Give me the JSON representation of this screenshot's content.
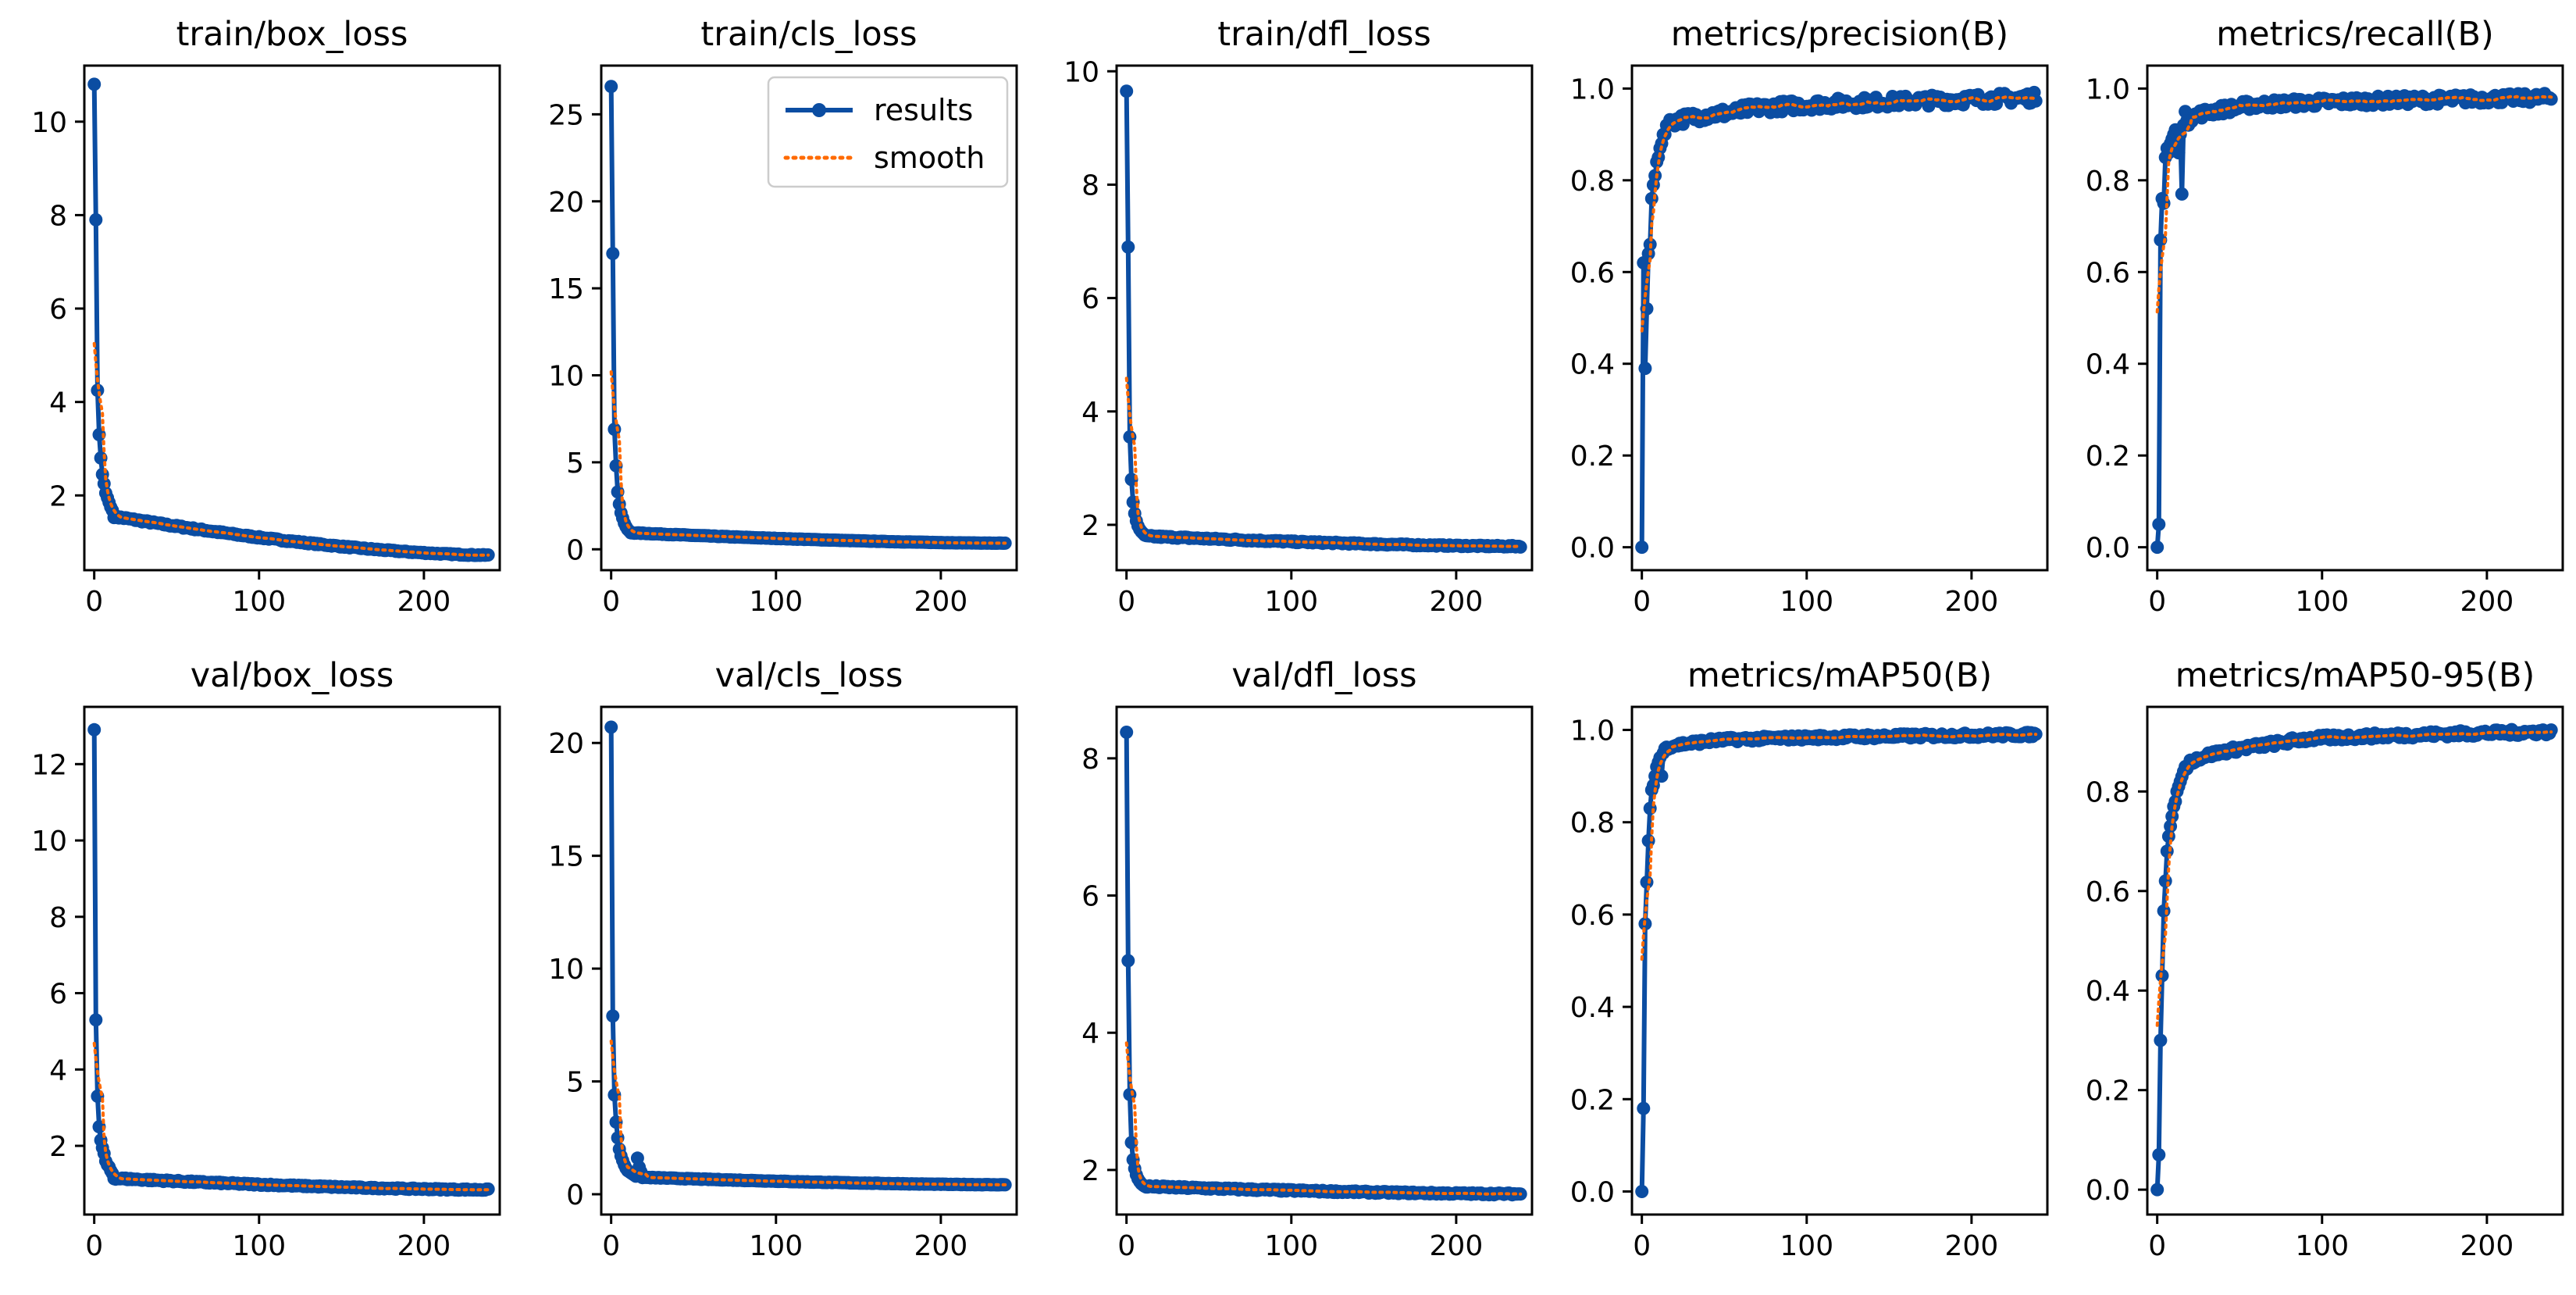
{
  "colors": {
    "results": "#0b4da2",
    "smooth": "#ff6a00",
    "axis": "#000000",
    "background": "#ffffff"
  },
  "legend": {
    "results_label": "results",
    "smooth_label": "smooth",
    "placement": "top-right of train/cls_loss"
  },
  "chart_data": [
    {
      "type": "line",
      "title": "train/box_loss",
      "xlim": [
        -6,
        246
      ],
      "ylim": [
        0.4,
        11.2
      ],
      "xticks": [
        0,
        100,
        200
      ],
      "yticks": [
        2,
        4,
        6,
        8,
        10
      ],
      "curve": {
        "kind": "decay",
        "start": [
          10.8,
          7.9,
          4.25,
          3.3,
          2.8,
          2.45,
          2.25,
          2.05,
          1.95,
          1.85,
          1.75,
          1.68
        ],
        "floor": 1.55,
        "end": 0.72,
        "noise": 0.015
      }
    },
    {
      "type": "line",
      "title": "train/cls_loss",
      "xlim": [
        -6,
        246
      ],
      "ylim": [
        -1.2,
        27.8
      ],
      "xticks": [
        0,
        100,
        200
      ],
      "yticks": [
        0,
        5,
        10,
        15,
        20,
        25
      ],
      "legend": true,
      "curve": {
        "kind": "decay",
        "start": [
          26.6,
          17.0,
          6.9,
          4.8,
          3.3,
          2.6,
          2.1,
          1.8,
          1.5,
          1.3,
          1.15,
          1.05
        ],
        "floor": 0.95,
        "end": 0.35,
        "noise": 0.02
      }
    },
    {
      "type": "line",
      "title": "train/dfl_loss",
      "xlim": [
        -6,
        246
      ],
      "ylim": [
        1.2,
        10.1
      ],
      "xticks": [
        0,
        100,
        200
      ],
      "yticks": [
        2,
        4,
        6,
        8,
        10
      ],
      "curve": {
        "kind": "decay",
        "start": [
          9.65,
          6.9,
          3.55,
          2.8,
          2.4,
          2.2,
          2.07,
          1.98,
          1.92,
          1.88,
          1.85,
          1.82
        ],
        "floor": 1.8,
        "end": 1.62,
        "noise": 0.008
      }
    },
    {
      "type": "line",
      "title": "metrics/precision(B)",
      "xlim": [
        -6,
        246
      ],
      "ylim": [
        -0.05,
        1.05
      ],
      "xticks": [
        0,
        100,
        200
      ],
      "yticks": [
        0.0,
        0.2,
        0.4,
        0.6,
        0.8,
        1.0
      ],
      "yfmt": 1,
      "curve": {
        "kind": "rise",
        "start": [
          0.0,
          0.62,
          0.39,
          0.52,
          0.64,
          0.66,
          0.76,
          0.79,
          0.81,
          0.84,
          0.85,
          0.87,
          0.88,
          0.9,
          0.9,
          0.92
        ],
        "plateau_at": 60,
        "plateau_from": 0.95,
        "end": 0.98,
        "noise": 0.012
      }
    },
    {
      "type": "line",
      "title": "metrics/recall(B)",
      "xlim": [
        -6,
        246
      ],
      "ylim": [
        -0.05,
        1.05
      ],
      "xticks": [
        0,
        100,
        200
      ],
      "yticks": [
        0.0,
        0.2,
        0.4,
        0.6,
        0.8,
        1.0
      ],
      "yfmt": 1,
      "curve": {
        "kind": "rise",
        "start": [
          0.0,
          0.05,
          0.67,
          0.76,
          0.75,
          0.85,
          0.87,
          0.86,
          0.88,
          0.89,
          0.9,
          0.91,
          0.9,
          0.86,
          0.9,
          0.77,
          0.92,
          0.95,
          0.93
        ],
        "plateau_at": 50,
        "plateau_from": 0.96,
        "end": 0.98,
        "noise": 0.01
      }
    },
    {
      "type": "line",
      "title": "val/box_loss",
      "xlim": [
        -6,
        246
      ],
      "ylim": [
        0.2,
        13.5
      ],
      "xticks": [
        0,
        100,
        200
      ],
      "yticks": [
        2,
        4,
        6,
        8,
        10,
        12
      ],
      "curve": {
        "kind": "decay",
        "start": [
          12.9,
          5.3,
          3.3,
          2.5,
          2.15,
          1.95,
          1.8,
          1.6,
          1.5,
          1.45,
          1.35,
          1.28
        ],
        "floor": 1.15,
        "end": 0.85,
        "noise": 0.02
      }
    },
    {
      "type": "line",
      "title": "val/cls_loss",
      "xlim": [
        -6,
        246
      ],
      "ylim": [
        -0.9,
        21.6
      ],
      "xticks": [
        0,
        100,
        200
      ],
      "yticks": [
        0,
        5,
        10,
        15,
        20
      ],
      "curve": {
        "kind": "decay",
        "start": [
          20.7,
          7.9,
          4.4,
          3.2,
          2.5,
          2.0,
          1.7,
          1.5,
          1.3,
          1.15,
          1.05,
          1.0,
          0.95,
          0.9,
          0.85,
          0.8,
          1.6,
          1.2,
          1.0
        ],
        "floor": 0.75,
        "end": 0.42,
        "noise": 0.02
      }
    },
    {
      "type": "line",
      "title": "val/dfl_loss",
      "xlim": [
        -6,
        246
      ],
      "ylim": [
        1.35,
        8.75
      ],
      "xticks": [
        0,
        100,
        200
      ],
      "yticks": [
        2,
        4,
        6,
        8
      ],
      "curve": {
        "kind": "decay",
        "start": [
          8.38,
          5.05,
          3.1,
          2.4,
          2.15,
          2.02,
          1.93,
          1.87,
          1.83,
          1.8,
          1.78
        ],
        "floor": 1.76,
        "end": 1.65,
        "noise": 0.008
      }
    },
    {
      "type": "line",
      "title": "metrics/mAP50(B)",
      "xlim": [
        -6,
        246
      ],
      "ylim": [
        -0.05,
        1.05
      ],
      "xticks": [
        0,
        100,
        200
      ],
      "yticks": [
        0.0,
        0.2,
        0.4,
        0.6,
        0.8,
        1.0
      ],
      "yfmt": 1,
      "curve": {
        "kind": "rise",
        "start": [
          0.0,
          0.18,
          0.58,
          0.67,
          0.76,
          0.83,
          0.87,
          0.88,
          0.9,
          0.92,
          0.93,
          0.94,
          0.9,
          0.95,
          0.96
        ],
        "plateau_at": 40,
        "plateau_from": 0.975,
        "end": 0.99,
        "noise": 0.005
      }
    },
    {
      "type": "line",
      "title": "metrics/mAP50-95(B)",
      "xlim": [
        -6,
        246
      ],
      "ylim": [
        -0.05,
        0.97
      ],
      "xticks": [
        0,
        100,
        200
      ],
      "yticks": [
        0.0,
        0.2,
        0.4,
        0.6,
        0.8
      ],
      "yfmt": 1,
      "curve": {
        "kind": "rise",
        "start": [
          0.0,
          0.07,
          0.3,
          0.43,
          0.56,
          0.62,
          0.68,
          0.71,
          0.73,
          0.75,
          0.77,
          0.78,
          0.8,
          0.81,
          0.82,
          0.83,
          0.84,
          0.85
        ],
        "plateau_at": 80,
        "plateau_from": 0.9,
        "end": 0.92,
        "noise": 0.006
      }
    }
  ]
}
